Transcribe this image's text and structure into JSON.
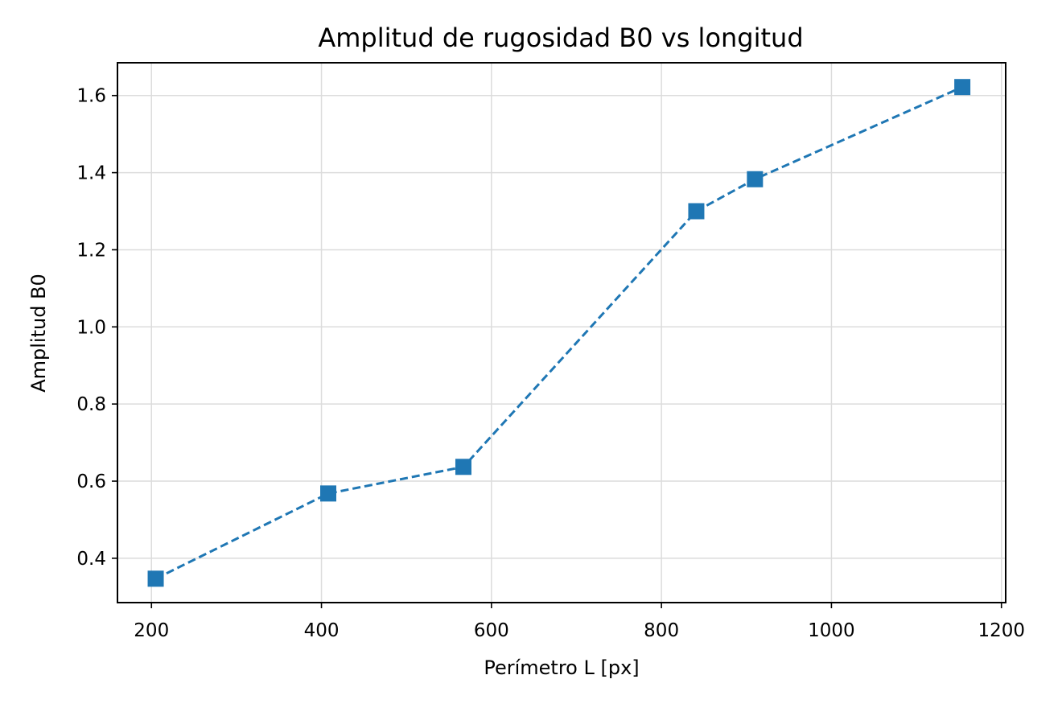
{
  "chart_data": {
    "type": "line",
    "title": "Amplitud de rugosidad B0 vs longitud",
    "xlabel": "Perímetro L [px]",
    "ylabel": "Amplitud B0",
    "xlim": [
      160,
      1205
    ],
    "ylim": [
      0.285,
      1.685
    ],
    "xticks": [
      200,
      400,
      600,
      800,
      1000,
      1200
    ],
    "xtick_labels": [
      "200",
      "400",
      "600",
      "800",
      "1000",
      "1200"
    ],
    "yticks": [
      0.4,
      0.6,
      0.8,
      1.0,
      1.2,
      1.4,
      1.6
    ],
    "ytick_labels": [
      "0.4",
      "0.6",
      "0.8",
      "1.0",
      "1.2",
      "1.4",
      "1.6"
    ],
    "grid": true,
    "line_style": "dashed",
    "marker": "square",
    "color": "#1f77b4",
    "series": [
      {
        "x": [
          205,
          408,
          567,
          841,
          910,
          1154
        ],
        "y": [
          0.347,
          0.568,
          0.637,
          1.3,
          1.383,
          1.622
        ]
      }
    ]
  }
}
